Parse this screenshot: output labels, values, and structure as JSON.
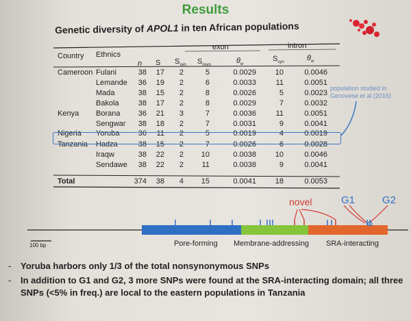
{
  "slide": {
    "title": "Results",
    "table_title_prefix": "Genetic diversity of ",
    "table_title_gene": "APOL1",
    "table_title_suffix": " in ten African populations",
    "callout": "population studied in Genovese et al (2016)"
  },
  "table": {
    "headers": {
      "country": "Country",
      "ethnics": "Ethnics",
      "exon": "exon",
      "intron": "intron",
      "n": "n",
      "s": "S",
      "s_syn": "S",
      "s_syn_sub": "syn",
      "s_nsyn": "S",
      "s_nsyn_sub": "nsyn",
      "theta_exon": "θ",
      "theta_exon_sub": "w",
      "s_intron": "S",
      "s_intron_sub": "syn",
      "theta_intron": "θ",
      "theta_intron_sub": "w"
    },
    "rows": [
      {
        "country": "Cameroon",
        "ethnic": "Fulani",
        "n": "38",
        "s": "17",
        "ssyn": "2",
        "snsyn": "5",
        "theta_exon": "0.0029",
        "s_intron": "10",
        "theta_intron": "0.0046"
      },
      {
        "country": "",
        "ethnic": "Lemande",
        "n": "36",
        "s": "19",
        "ssyn": "2",
        "snsyn": "6",
        "theta_exon": "0.0033",
        "s_intron": "11",
        "theta_intron": "0.0051"
      },
      {
        "country": "",
        "ethnic": "Mada",
        "n": "38",
        "s": "15",
        "ssyn": "2",
        "snsyn": "8",
        "theta_exon": "0.0026",
        "s_intron": "5",
        "theta_intron": "0.0023"
      },
      {
        "country": "",
        "ethnic": "Bakola",
        "n": "38",
        "s": "17",
        "ssyn": "2",
        "snsyn": "8",
        "theta_exon": "0.0029",
        "s_intron": "7",
        "theta_intron": "0.0032"
      },
      {
        "country": "Kenya",
        "ethnic": "Borana",
        "n": "36",
        "s": "21",
        "ssyn": "3",
        "snsyn": "7",
        "theta_exon": "0.0036",
        "s_intron": "11",
        "theta_intron": "0.0051"
      },
      {
        "country": "",
        "ethnic": "Sengwar",
        "n": "38",
        "s": "18",
        "ssyn": "2",
        "snsyn": "7",
        "theta_exon": "0.0031",
        "s_intron": "9",
        "theta_intron": "0.0041"
      },
      {
        "country": "Nigeria",
        "ethnic": "Yoruba",
        "n": "36",
        "s": "11",
        "ssyn": "2",
        "snsyn": "5",
        "theta_exon": "0.0019",
        "s_intron": "4",
        "theta_intron": "0.0019"
      },
      {
        "country": "Tanzania",
        "ethnic": "Hadza",
        "n": "38",
        "s": "15",
        "ssyn": "2",
        "snsyn": "7",
        "theta_exon": "0.0026",
        "s_intron": "6",
        "theta_intron": "0.0028"
      },
      {
        "country": "",
        "ethnic": "Iraqw",
        "n": "38",
        "s": "22",
        "ssyn": "2",
        "snsyn": "10",
        "theta_exon": "0.0038",
        "s_intron": "10",
        "theta_intron": "0.0046"
      },
      {
        "country": "",
        "ethnic": "Sendawe",
        "n": "38",
        "s": "22",
        "ssyn": "2",
        "snsyn": "11",
        "theta_exon": "0.0038",
        "s_intron": "9",
        "theta_intron": "0.0041"
      }
    ],
    "total": {
      "label": "Total",
      "n": "374",
      "s": "38",
      "ssyn": "4",
      "snsyn": "15",
      "theta_exon": "0.0041",
      "s_intron": "18",
      "theta_intron": "0.0053"
    }
  },
  "diagram": {
    "scale_label": "100 bp",
    "domains": [
      {
        "label": "Pore-forming",
        "color": "#2f6fc4"
      },
      {
        "label": "Membrane-addressing",
        "color": "#86c43c"
      },
      {
        "label": "SRA-interacting",
        "color": "#e2672c"
      }
    ],
    "markers": {
      "novel": "novel",
      "g1": "G1",
      "g2": "G2"
    },
    "marker_colors": {
      "novel": "#d23a2f",
      "g": "#2f6fc4"
    }
  },
  "bullets": [
    "Yoruba harbors only 1/3 of the total nonsynonymous SNPs",
    "In addition to G1 and G2, 3 more SNPs were found at the SRA-interacting domain; all three SNPs (<5% in freq.) are local to the eastern populations in Tanzania"
  ]
}
